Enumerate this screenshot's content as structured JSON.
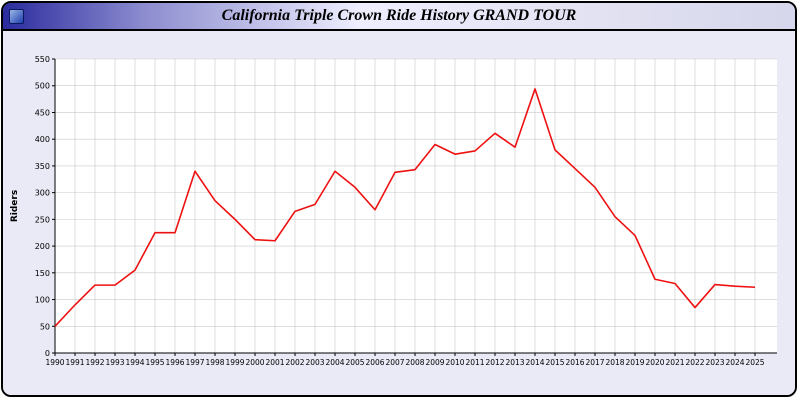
{
  "window": {
    "title": "California Triple Crown Ride History GRAND TOUR",
    "icon": "app-icon"
  },
  "chart_data": {
    "type": "line",
    "title": "California Triple Crown Ride History GRAND TOUR",
    "xlabel": "",
    "ylabel": "Riders",
    "ylim": [
      0,
      550
    ],
    "yticks": [
      0,
      50,
      100,
      150,
      200,
      250,
      300,
      350,
      400,
      450,
      500,
      550
    ],
    "grid": true,
    "legend": "none",
    "line_color": "#ee1111",
    "plot_background": "#ffffff",
    "outer_background": "#eaeaf6",
    "x": [
      1990,
      1991,
      1992,
      1993,
      1994,
      1995,
      1996,
      1997,
      1998,
      1999,
      2000,
      2001,
      2002,
      2003,
      2004,
      2005,
      2006,
      2007,
      2008,
      2009,
      2010,
      2011,
      2012,
      2013,
      2014,
      2015,
      2016,
      2017,
      2018,
      2019,
      2020,
      2021,
      2022,
      2023,
      2024,
      2025
    ],
    "series": [
      {
        "name": "Riders",
        "values": [
          50,
          90,
          127,
          127,
          155,
          225,
          225,
          340,
          285,
          250,
          212,
          210,
          265,
          278,
          340,
          310,
          268,
          338,
          343,
          390,
          372,
          378,
          411,
          385,
          494,
          380,
          345,
          310,
          255,
          220,
          138,
          130,
          85,
          128,
          125,
          123
        ]
      }
    ]
  }
}
